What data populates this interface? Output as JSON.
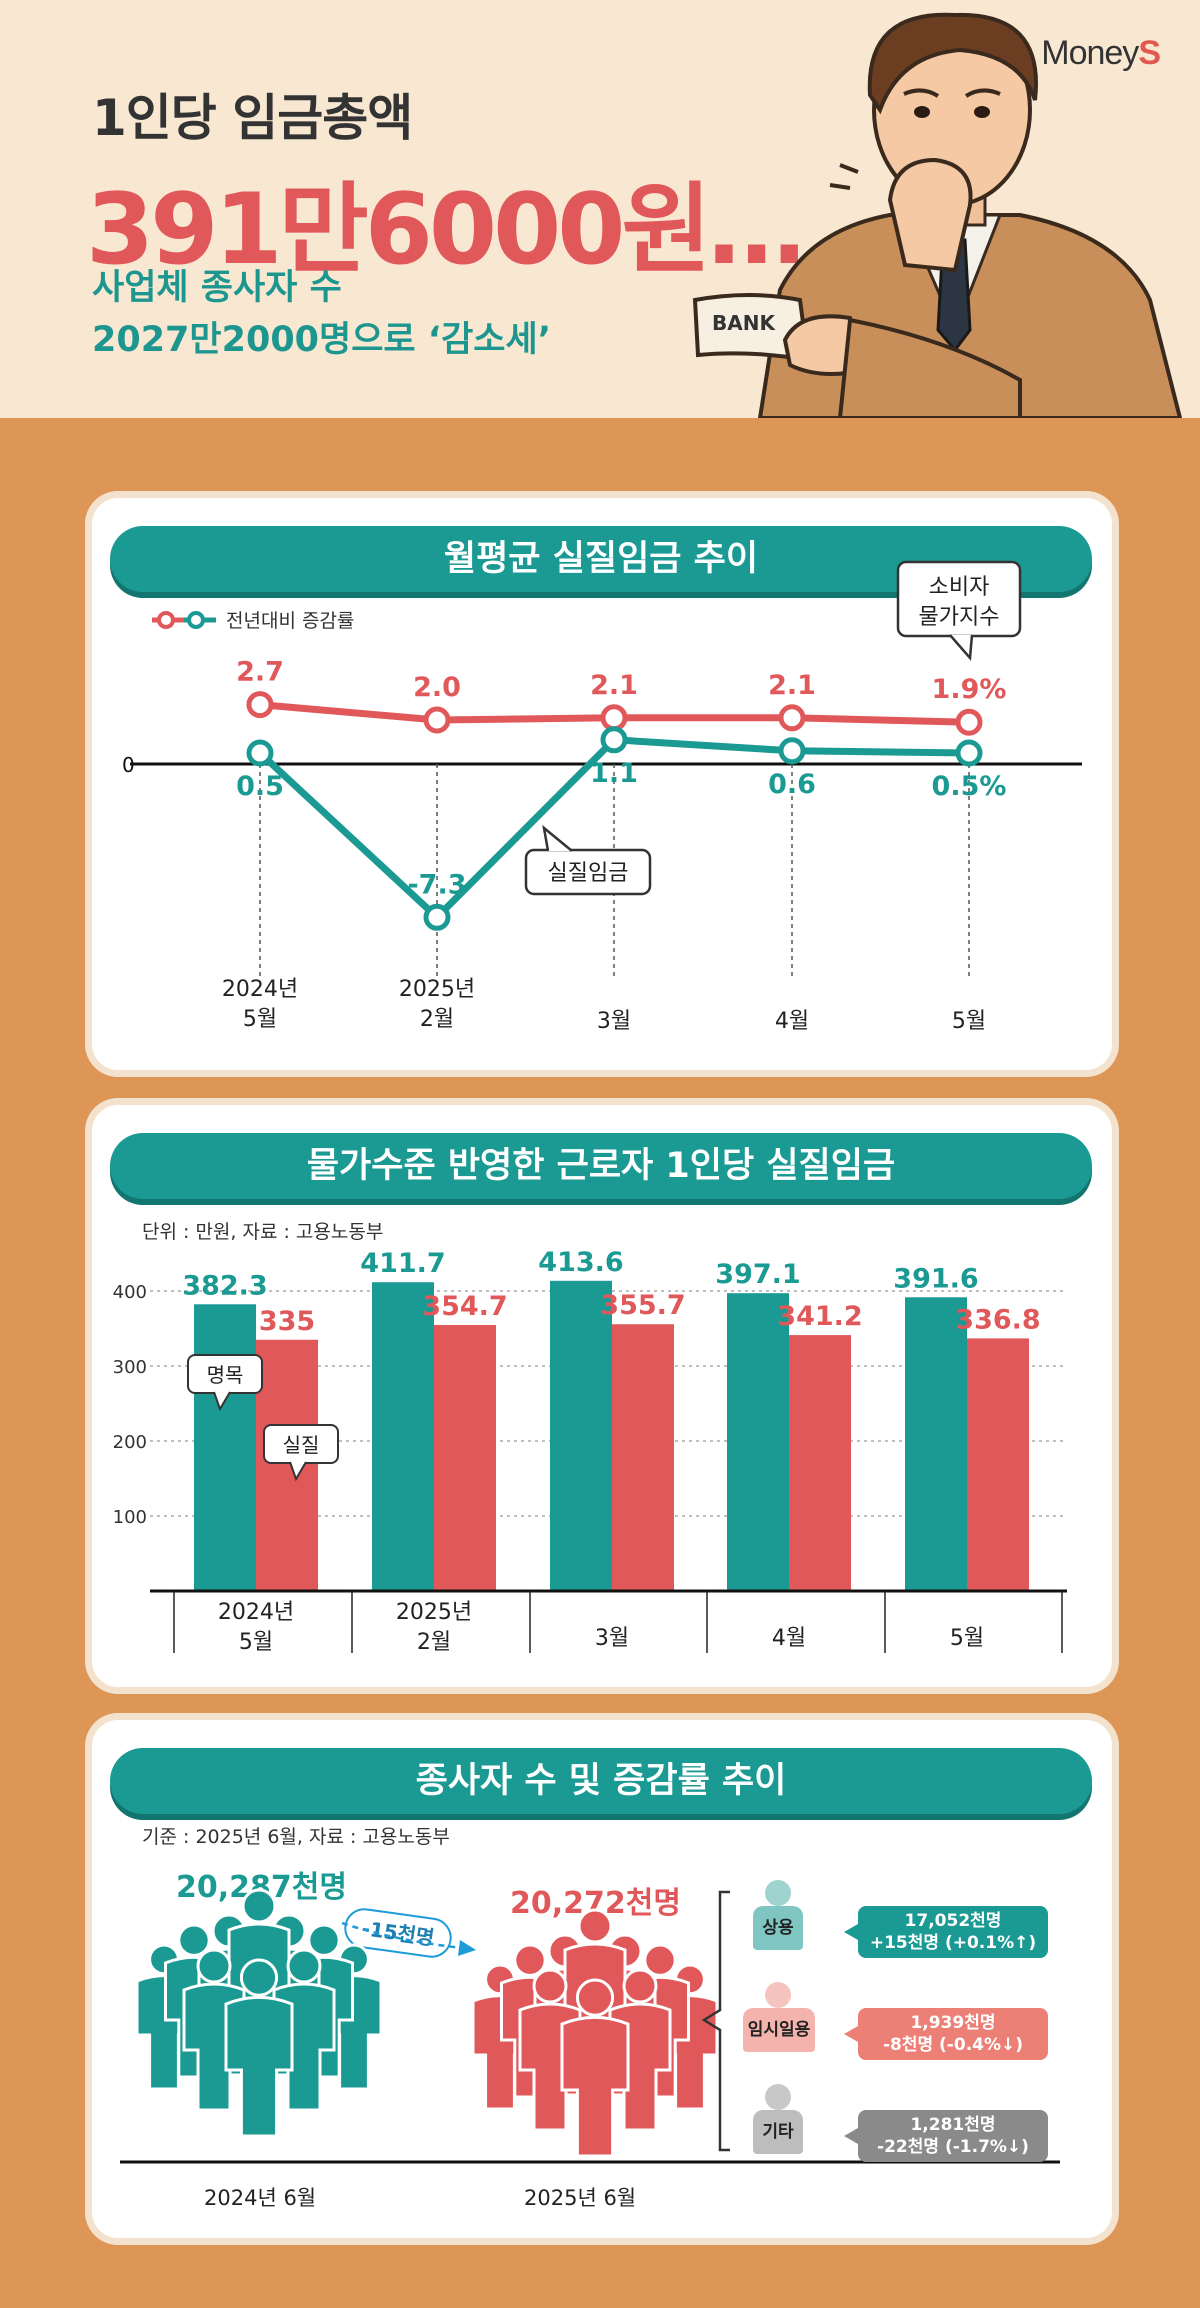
{
  "header": {
    "brand_main": "Money",
    "brand_accent": "S",
    "line1": "1인당 임금총액",
    "line2": "391만6000원…",
    "line3a": "사업체 종사자 수",
    "line3b": "2027만2000명으로 ‘감소세’",
    "bank_label": "BANK"
  },
  "colors": {
    "teal": "#1b9a94",
    "red": "#e0585a",
    "bg": "#dd9655",
    "gray": "#8a8a8a"
  },
  "chart_data": [
    {
      "type": "line",
      "title": "월평균 실질임금 추이",
      "legend": "전년대비 증감률",
      "categories": [
        "2024년\n5월",
        "2025년\n2월",
        "3월",
        "4월",
        "5월"
      ],
      "series": [
        {
          "name": "소비자 물가지수",
          "values": [
            2.7,
            2.0,
            2.1,
            2.1,
            1.9
          ],
          "labels": [
            "2.7",
            "2.0",
            "2.1",
            "2.1",
            "1.9%"
          ],
          "color": "#e0585a"
        },
        {
          "name": "실질임금",
          "values": [
            0.5,
            -7.3,
            1.1,
            0.6,
            0.5
          ],
          "labels": [
            "0.5",
            "-7.3",
            "1.1",
            "0.6",
            "0.5%"
          ],
          "color": "#1b9a94"
        }
      ],
      "zero_label": "0",
      "callout_cpi": [
        "소비자",
        "물가지수"
      ],
      "callout_real": "실질임금"
    },
    {
      "type": "bar",
      "title": "물가수준 반영한 근로자 1인당 실질임금",
      "note": "단위 : 만원, 자료 : 고용노동부",
      "categories": [
        "2024년\n5월",
        "2025년\n2월",
        "3월",
        "4월",
        "5월"
      ],
      "ylim": [
        0,
        420
      ],
      "yticks": [
        100,
        200,
        300,
        400
      ],
      "series": [
        {
          "name": "명목",
          "values": [
            382.3,
            411.7,
            413.6,
            397.1,
            391.6
          ],
          "labels": [
            "382.3",
            "411.7",
            "413.6",
            "397.1",
            "391.6"
          ],
          "color": "#1b9a94"
        },
        {
          "name": "실질",
          "values": [
            335,
            354.7,
            355.7,
            341.2,
            336.8
          ],
          "labels": [
            "335",
            "354.7",
            "355.7",
            "341.2",
            "336.8"
          ],
          "color": "#e0585a"
        }
      ]
    }
  ],
  "workers": {
    "title": "종사자 수 및 증감률 추이",
    "note": "기준 : 2025년 6월, 자료 : 고용노동부",
    "y2024": {
      "total": "20,287천명",
      "label": "2024년 6월"
    },
    "y2025": {
      "total": "20,272천명",
      "label": "2025년 6월"
    },
    "diff": "-15천명",
    "categories": [
      {
        "name": "상용",
        "line1": "17,052천명",
        "line2": "+15천명 (+0.1%↑)",
        "color": "#1b9a94",
        "body": "#7fc6c2",
        "head": "#9fd3cf"
      },
      {
        "name": "임시일용",
        "line1": "1,939천명",
        "line2": "-8천명 (-0.4%↓)",
        "color": "#ec8077",
        "body": "#f4b3ad",
        "head": "#f6c4bf"
      },
      {
        "name": "기타",
        "line1": "1,281천명",
        "line2": "-22천명 (-1.7%↓)",
        "color": "#8a8a8a",
        "body": "#bdbdbd",
        "head": "#c8c8c8"
      }
    ]
  }
}
